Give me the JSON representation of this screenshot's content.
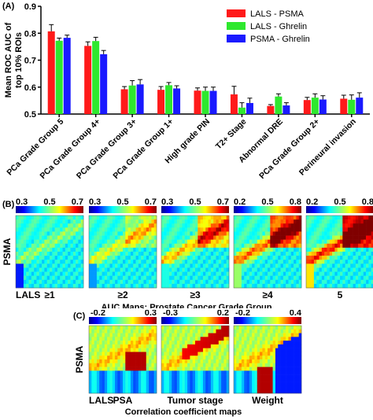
{
  "panels": {
    "a": {
      "label": "(A)"
    },
    "b": {
      "label": "(B)"
    },
    "c": {
      "label": "(C)"
    }
  },
  "chart_data": [
    {
      "type": "bar",
      "panel": "(A)",
      "ylabel": "Mean ROC AUC of top 10% ROIs",
      "ylim": [
        0.5,
        0.9
      ],
      "yticks": [
        "0.5",
        "0.6",
        "0.7",
        "0.8",
        "0.9"
      ],
      "legend_position": "top-right",
      "categories": [
        "PCa Grade Group 5",
        "PCa Grade Group 4+",
        "PCa Grade Group 3+",
        "PCa Grade Group 1+",
        "High grade PIN",
        "T2+ Stage",
        "Abnormal DRE",
        "PCa Grade Group 2+",
        "Perineural invasion"
      ],
      "series": [
        {
          "name": "LALS - PSMA",
          "color": "#ff1a1a",
          "values": [
            0.807,
            0.753,
            0.592,
            0.59,
            0.587,
            0.573,
            0.53,
            0.552,
            0.557
          ],
          "errors": [
            0.025,
            0.015,
            0.01,
            0.012,
            0.01,
            0.03,
            0.005,
            0.01,
            0.013
          ]
        },
        {
          "name": "LALS - Ghrelin",
          "color": "#2ee82e",
          "values": [
            0.772,
            0.771,
            0.606,
            0.607,
            0.586,
            0.524,
            0.565,
            0.561,
            0.553
          ]
        },
        {
          "name": "PSMA - Ghrelin",
          "color": "#1a1aff",
          "values": [
            0.783,
            0.722,
            0.61,
            0.595,
            0.586,
            0.541,
            0.532,
            0.554,
            0.561
          ]
        }
      ]
    },
    {
      "type": "heatmap",
      "panel": "(B)",
      "title": "AUC Maps: Prostate Cancer Grade Group",
      "ylabel": "PSMA",
      "xlabel": "LALS",
      "maps": [
        {
          "label": "≥1",
          "colorbar": [
            "0.3",
            "0.5",
            "0.7"
          ]
        },
        {
          "label": "≥2",
          "colorbar": [
            "0.3",
            "0.5",
            "0.7"
          ]
        },
        {
          "label": "≥3",
          "colorbar": [
            "0.3",
            "0.5",
            "0.7"
          ]
        },
        {
          "label": "≥4",
          "colorbar": [
            "0.2",
            "0.5",
            "0.8"
          ]
        },
        {
          "label": "5",
          "colorbar": [
            "0.2",
            "0.5",
            "0.8"
          ]
        }
      ]
    },
    {
      "type": "heatmap",
      "panel": "(C)",
      "title": "Correlation coefficient maps",
      "ylabel": "PSMA",
      "xlabel": "LALS",
      "maps": [
        {
          "label": "PSA",
          "colorbar": [
            "-0.2",
            "0.3"
          ]
        },
        {
          "label": "Tumor stage",
          "colorbar": [
            "-0.3",
            "0.2"
          ]
        },
        {
          "label": "Weight",
          "colorbar": [
            "-0.2",
            "0.4"
          ]
        }
      ]
    }
  ]
}
